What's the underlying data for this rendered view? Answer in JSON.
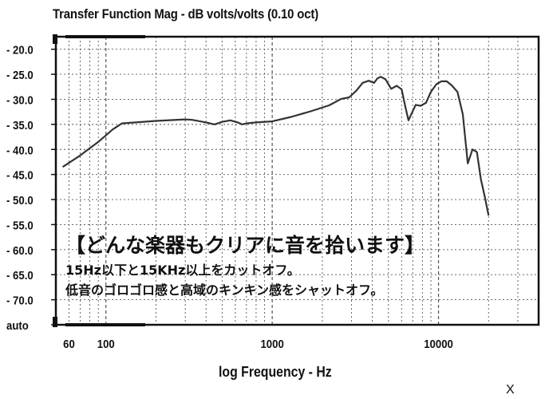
{
  "chart_data": {
    "type": "line",
    "title": "Transfer Function Mag - dB volts/volts (0.10 oct)",
    "xlabel": "log Frequency - Hz",
    "ylabel": "",
    "xscale": "log",
    "xlim": [
      50,
      40000
    ],
    "ylim": [
      "auto",
      -17.5
    ],
    "x_tick_labels": [
      {
        "value": 60,
        "label": "60"
      },
      {
        "value": 100,
        "label": "100"
      },
      {
        "value": 1000,
        "label": "1000"
      },
      {
        "value": 10000,
        "label": "10000"
      }
    ],
    "y_tick_labels": [
      {
        "value": -20,
        "label": "- 20.0"
      },
      {
        "value": -25,
        "label": "- 25.0"
      },
      {
        "value": -30,
        "label": "- 30.0"
      },
      {
        "value": -35,
        "label": "- 35.0"
      },
      {
        "value": -40,
        "label": "- 40.0"
      },
      {
        "value": -45,
        "label": "- 45.0"
      },
      {
        "value": -50,
        "label": "- 50.0"
      },
      {
        "value": -55,
        "label": "- 55.0"
      },
      {
        "value": -60,
        "label": "- 60.0"
      },
      {
        "value": -65,
        "label": "- 65.0"
      },
      {
        "value": -70,
        "label": "- 70.0"
      },
      {
        "value": -75,
        "label": "auto"
      }
    ],
    "grid": true,
    "series": [
      {
        "name": "",
        "color": "#333333",
        "x": [
          55,
          70,
          90,
          110,
          125,
          200,
          300,
          330,
          400,
          450,
          500,
          560,
          620,
          660,
          700,
          800,
          1000,
          1300,
          1700,
          2200,
          2600,
          2900,
          3200,
          3500,
          3800,
          4100,
          4300,
          4500,
          4800,
          5200,
          5600,
          6000,
          6300,
          6600,
          6900,
          7300,
          7800,
          8400,
          9000,
          9700,
          10400,
          11200,
          12000,
          13000,
          14000,
          15000,
          16000,
          17000,
          18000,
          19000,
          20000
        ],
        "y": [
          -43.5,
          -41.2,
          -38.5,
          -36.0,
          -34.8,
          -34.3,
          -34.0,
          -34.1,
          -34.6,
          -35.0,
          -34.5,
          -34.2,
          -34.6,
          -35.0,
          -34.8,
          -34.6,
          -34.4,
          -33.5,
          -32.4,
          -31.2,
          -29.9,
          -29.6,
          -28.3,
          -26.7,
          -26.3,
          -26.7,
          -25.8,
          -25.5,
          -26.0,
          -27.9,
          -27.3,
          -28.0,
          -31.3,
          -34.2,
          -32.8,
          -31.1,
          -31.3,
          -30.7,
          -28.5,
          -27.0,
          -26.4,
          -26.4,
          -27.2,
          -28.5,
          -33.0,
          -42.8,
          -40.0,
          -40.5,
          -46.0,
          -49.5,
          -53.2
        ]
      }
    ]
  },
  "overlay": {
    "headline": "【どんな楽器もクリアに音を拾います】",
    "line1": "15Hz以下と15KHz以上をカットオフ。",
    "line2": "低音のゴロゴロ感と高域のキンキン感をシャットオフ。"
  },
  "corner_mark": "X"
}
